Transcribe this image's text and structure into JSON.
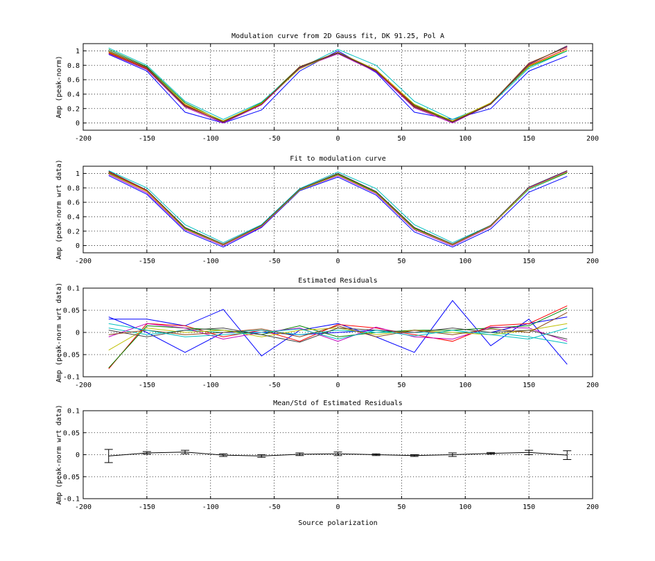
{
  "figure": {
    "background": "#ffffff",
    "axis_color": "#000000",
    "grid_color": "#000000"
  },
  "chart_data": [
    {
      "type": "line",
      "title": "Modulation curve from 2D Gauss fit, DK 91.25, Pol A",
      "xlabel": "",
      "ylabel": "Amp (peak-norm)",
      "xlim": [
        -200,
        200
      ],
      "ylim": [
        -0.1,
        1.1
      ],
      "xticks": [
        -200,
        -150,
        -100,
        -50,
        0,
        50,
        100,
        150,
        200
      ],
      "yticks": [
        0,
        0.2,
        0.4,
        0.6,
        0.8,
        1
      ],
      "grid": true,
      "x": [
        -180,
        -150,
        -120,
        -90,
        -60,
        -30,
        0,
        30,
        60,
        90,
        120,
        150,
        180
      ],
      "series": [
        {
          "color": "#0000ff",
          "values": [
            0.95,
            0.72,
            0.15,
            0.0,
            0.18,
            0.72,
            1.0,
            0.7,
            0.15,
            0.05,
            0.2,
            0.72,
            0.93
          ]
        },
        {
          "color": "#008000",
          "values": [
            1.02,
            0.78,
            0.28,
            0.02,
            0.28,
            0.78,
            0.97,
            0.72,
            0.25,
            0.02,
            0.28,
            0.78,
            1.0
          ]
        },
        {
          "color": "#ff0000",
          "values": [
            0.98,
            0.76,
            0.25,
            0.01,
            0.27,
            0.77,
            0.97,
            0.73,
            0.24,
            0.01,
            0.27,
            0.8,
            1.03
          ]
        },
        {
          "color": "#00bfbf",
          "values": [
            1.04,
            0.8,
            0.3,
            0.05,
            0.29,
            0.76,
            1.02,
            0.8,
            0.3,
            0.05,
            0.26,
            0.76,
            1.0
          ]
        },
        {
          "color": "#bf00bf",
          "values": [
            0.96,
            0.74,
            0.22,
            0.0,
            0.25,
            0.76,
            0.96,
            0.71,
            0.21,
            0.0,
            0.26,
            0.82,
            1.06
          ]
        },
        {
          "color": "#bfbf00",
          "values": [
            0.99,
            0.77,
            0.26,
            0.03,
            0.27,
            0.75,
            0.98,
            0.74,
            0.26,
            0.03,
            0.28,
            0.79,
            1.01
          ]
        },
        {
          "color": "#404040",
          "values": [
            1.0,
            0.77,
            0.24,
            0.01,
            0.26,
            0.77,
            0.97,
            0.72,
            0.23,
            0.01,
            0.26,
            0.81,
            1.07
          ]
        },
        {
          "color": "#8b4513",
          "values": [
            0.97,
            0.75,
            0.23,
            0.02,
            0.26,
            0.78,
            0.98,
            0.73,
            0.22,
            0.02,
            0.27,
            0.83,
            1.05
          ]
        }
      ]
    },
    {
      "type": "line",
      "title": "Fit to modulation curve",
      "xlabel": "",
      "ylabel": "Amp (peak-norm wrt data)",
      "xlim": [
        -200,
        200
      ],
      "ylim": [
        -0.1,
        1.1
      ],
      "xticks": [
        -200,
        -150,
        -100,
        -50,
        0,
        50,
        100,
        150,
        200
      ],
      "yticks": [
        0,
        0.2,
        0.4,
        0.6,
        0.8,
        1
      ],
      "grid": true,
      "x": [
        -180,
        -150,
        -120,
        -90,
        -60,
        -30,
        0,
        30,
        60,
        90,
        120,
        150,
        180
      ],
      "series": [
        {
          "color": "#0000ff",
          "values": [
            0.97,
            0.71,
            0.2,
            -0.02,
            0.25,
            0.76,
            0.95,
            0.7,
            0.19,
            -0.02,
            0.23,
            0.74,
            0.96
          ]
        },
        {
          "color": "#008000",
          "values": [
            1.01,
            0.75,
            0.24,
            0.01,
            0.27,
            0.77,
            0.99,
            0.74,
            0.24,
            0.01,
            0.27,
            0.78,
            1.01
          ]
        },
        {
          "color": "#ff0000",
          "values": [
            1.02,
            0.76,
            0.25,
            0.02,
            0.28,
            0.78,
            1.0,
            0.75,
            0.25,
            0.02,
            0.28,
            0.79,
            1.02
          ]
        },
        {
          "color": "#00bfbf",
          "values": [
            1.04,
            0.8,
            0.29,
            0.04,
            0.29,
            0.79,
            1.02,
            0.79,
            0.29,
            0.04,
            0.28,
            0.78,
            1.02
          ]
        },
        {
          "color": "#bf00bf",
          "values": [
            0.99,
            0.73,
            0.22,
            0.0,
            0.26,
            0.77,
            0.97,
            0.72,
            0.22,
            0.0,
            0.26,
            0.8,
            1.03
          ]
        },
        {
          "color": "#bfbf00",
          "values": [
            1.0,
            0.75,
            0.23,
            0.01,
            0.27,
            0.77,
            0.98,
            0.73,
            0.23,
            0.01,
            0.27,
            0.79,
            1.02
          ]
        },
        {
          "color": "#404040",
          "values": [
            1.03,
            0.77,
            0.25,
            0.02,
            0.28,
            0.78,
            1.0,
            0.75,
            0.25,
            0.02,
            0.28,
            0.81,
            1.04
          ]
        }
      ]
    },
    {
      "type": "line",
      "title": "Estimated Residuals",
      "xlabel": "",
      "ylabel": "Amp (peak-norm wrt data)",
      "xlim": [
        -200,
        200
      ],
      "ylim": [
        -0.1,
        0.1
      ],
      "xticks": [
        -200,
        -150,
        -100,
        -50,
        0,
        50,
        100,
        150,
        200
      ],
      "yticks": [
        -0.1,
        -0.05,
        0,
        0.05,
        0.1
      ],
      "grid": true,
      "x": [
        -180,
        -150,
        -120,
        -90,
        -60,
        -30,
        0,
        30,
        60,
        90,
        120,
        150,
        180
      ],
      "series": [
        {
          "color": "#0000ff",
          "values": [
            0.03,
            0.03,
            0.015,
            0.052,
            -0.053,
            0.005,
            0.02,
            -0.01,
            -0.045,
            0.072,
            -0.03,
            0.03,
            -0.072
          ]
        },
        {
          "color": "#0000ff",
          "values": [
            0.035,
            0.0,
            -0.045,
            0.0,
            0.0,
            -0.005,
            0.0,
            0.005,
            0.0,
            0.0,
            0.0,
            0.02,
            0.035
          ]
        },
        {
          "color": "#ff0000",
          "values": [
            -0.082,
            0.02,
            0.015,
            -0.01,
            0.005,
            -0.02,
            0.018,
            0.01,
            -0.005,
            -0.02,
            0.015,
            0.02,
            0.06
          ]
        },
        {
          "color": "#008000",
          "values": [
            -0.08,
            0.015,
            0.01,
            0.005,
            -0.005,
            0.015,
            -0.01,
            0.0,
            0.005,
            0.005,
            0.01,
            0.015,
            0.055
          ]
        },
        {
          "color": "#00bfbf",
          "values": [
            0.01,
            -0.005,
            0.005,
            0.0,
            0.005,
            -0.005,
            0.005,
            0.0,
            0.0,
            0.0,
            0.0,
            -0.01,
            -0.025
          ]
        },
        {
          "color": "#bf00bf",
          "values": [
            -0.01,
            0.02,
            0.01,
            -0.015,
            0.0,
            0.01,
            -0.02,
            0.012,
            -0.01,
            -0.015,
            0.012,
            0.01,
            -0.02
          ]
        },
        {
          "color": "#bfbf00",
          "values": [
            -0.04,
            0.01,
            0.0,
            0.005,
            -0.01,
            0.005,
            0.01,
            -0.005,
            0.005,
            0.0,
            -0.005,
            0.005,
            0.02
          ]
        },
        {
          "color": "#404040",
          "values": [
            0.005,
            -0.01,
            0.005,
            0.01,
            -0.005,
            -0.022,
            0.01,
            0.005,
            0.0,
            0.01,
            0.0,
            0.005,
            -0.015
          ]
        },
        {
          "color": "#8b4513",
          "values": [
            -0.005,
            0.005,
            -0.005,
            0.0,
            0.008,
            -0.01,
            0.015,
            -0.01,
            0.005,
            -0.005,
            0.008,
            0.0,
            0.045
          ]
        },
        {
          "color": "#00bfbf",
          "values": [
            0.02,
            0.005,
            -0.01,
            -0.005,
            0.0,
            0.008,
            -0.015,
            0.005,
            -0.008,
            0.005,
            -0.005,
            -0.015,
            0.01
          ]
        }
      ]
    },
    {
      "type": "line",
      "title": "Mean/Std of Estimated Residuals",
      "xlabel": "Source polarization",
      "ylabel": "Amp (peak-norm wrt data)",
      "xlim": [
        -200,
        200
      ],
      "ylim": [
        -0.1,
        0.1
      ],
      "xticks": [
        -200,
        -150,
        -100,
        -50,
        0,
        50,
        100,
        150,
        200
      ],
      "yticks": [
        -0.1,
        -0.05,
        0,
        0.05,
        0.1
      ],
      "grid": true,
      "x": [
        -180,
        -150,
        -120,
        -90,
        -60,
        -30,
        0,
        30,
        60,
        90,
        120,
        150,
        180
      ],
      "series": [
        {
          "color": "#000000",
          "values": [
            -0.003,
            0.004,
            0.006,
            -0.001,
            -0.003,
            0.001,
            0.002,
            0.0,
            -0.002,
            0.0,
            0.003,
            0.005,
            -0.001
          ],
          "errors": [
            0.015,
            0.003,
            0.004,
            0.003,
            0.003,
            0.003,
            0.004,
            0.002,
            0.002,
            0.004,
            0.002,
            0.005,
            0.01
          ]
        }
      ]
    }
  ]
}
